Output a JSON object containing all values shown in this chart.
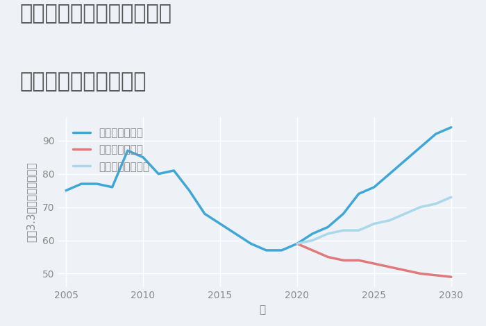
{
  "title_line1": "三重県松阪市御麻生薗町の",
  "title_line2": "中古戸建ての価格推移",
  "xlabel": "年",
  "ylabel": "坪（3.3㎡）単価（万円）",
  "background_color": "#eef2f7",
  "plot_bg_color": "#eef2f7",
  "ylim": [
    46,
    97
  ],
  "xlim": [
    2004.5,
    2031
  ],
  "yticks": [
    50,
    60,
    70,
    80,
    90
  ],
  "xticks": [
    2005,
    2010,
    2015,
    2020,
    2025,
    2030
  ],
  "good_scenario": {
    "x": [
      2005,
      2006,
      2007,
      2008,
      2009,
      2010,
      2011,
      2012,
      2013,
      2014,
      2015,
      2016,
      2017,
      2018,
      2019,
      2020,
      2021,
      2022,
      2023,
      2024,
      2025,
      2026,
      2027,
      2028,
      2029,
      2030
    ],
    "y": [
      75,
      77,
      77,
      76,
      87,
      85,
      80,
      81,
      75,
      68,
      65,
      62,
      59,
      57,
      57,
      59,
      62,
      64,
      68,
      74,
      76,
      80,
      84,
      88,
      92,
      94
    ],
    "color": "#3fa7d6",
    "label": "グッドシナリオ",
    "linewidth": 2.5
  },
  "bad_scenario": {
    "x": [
      2020,
      2021,
      2022,
      2023,
      2024,
      2025,
      2026,
      2027,
      2028,
      2029,
      2030
    ],
    "y": [
      59,
      57,
      55,
      54,
      54,
      53,
      52,
      51,
      50,
      49.5,
      49
    ],
    "color": "#e07a7a",
    "label": "バッドシナリオ",
    "linewidth": 2.5
  },
  "normal_scenario": {
    "x": [
      2020,
      2021,
      2022,
      2023,
      2024,
      2025,
      2026,
      2027,
      2028,
      2029,
      2030
    ],
    "y": [
      59,
      60,
      62,
      63,
      63,
      65,
      66,
      68,
      70,
      71,
      73
    ],
    "color": "#a8d8ea",
    "label": "ノーマルシナリオ",
    "linewidth": 2.5
  },
  "grid_color": "#ffffff",
  "title_color": "#555555",
  "tick_color": "#888888",
  "title_fontsize": 22,
  "axis_label_fontsize": 11,
  "tick_fontsize": 10,
  "legend_fontsize": 11
}
